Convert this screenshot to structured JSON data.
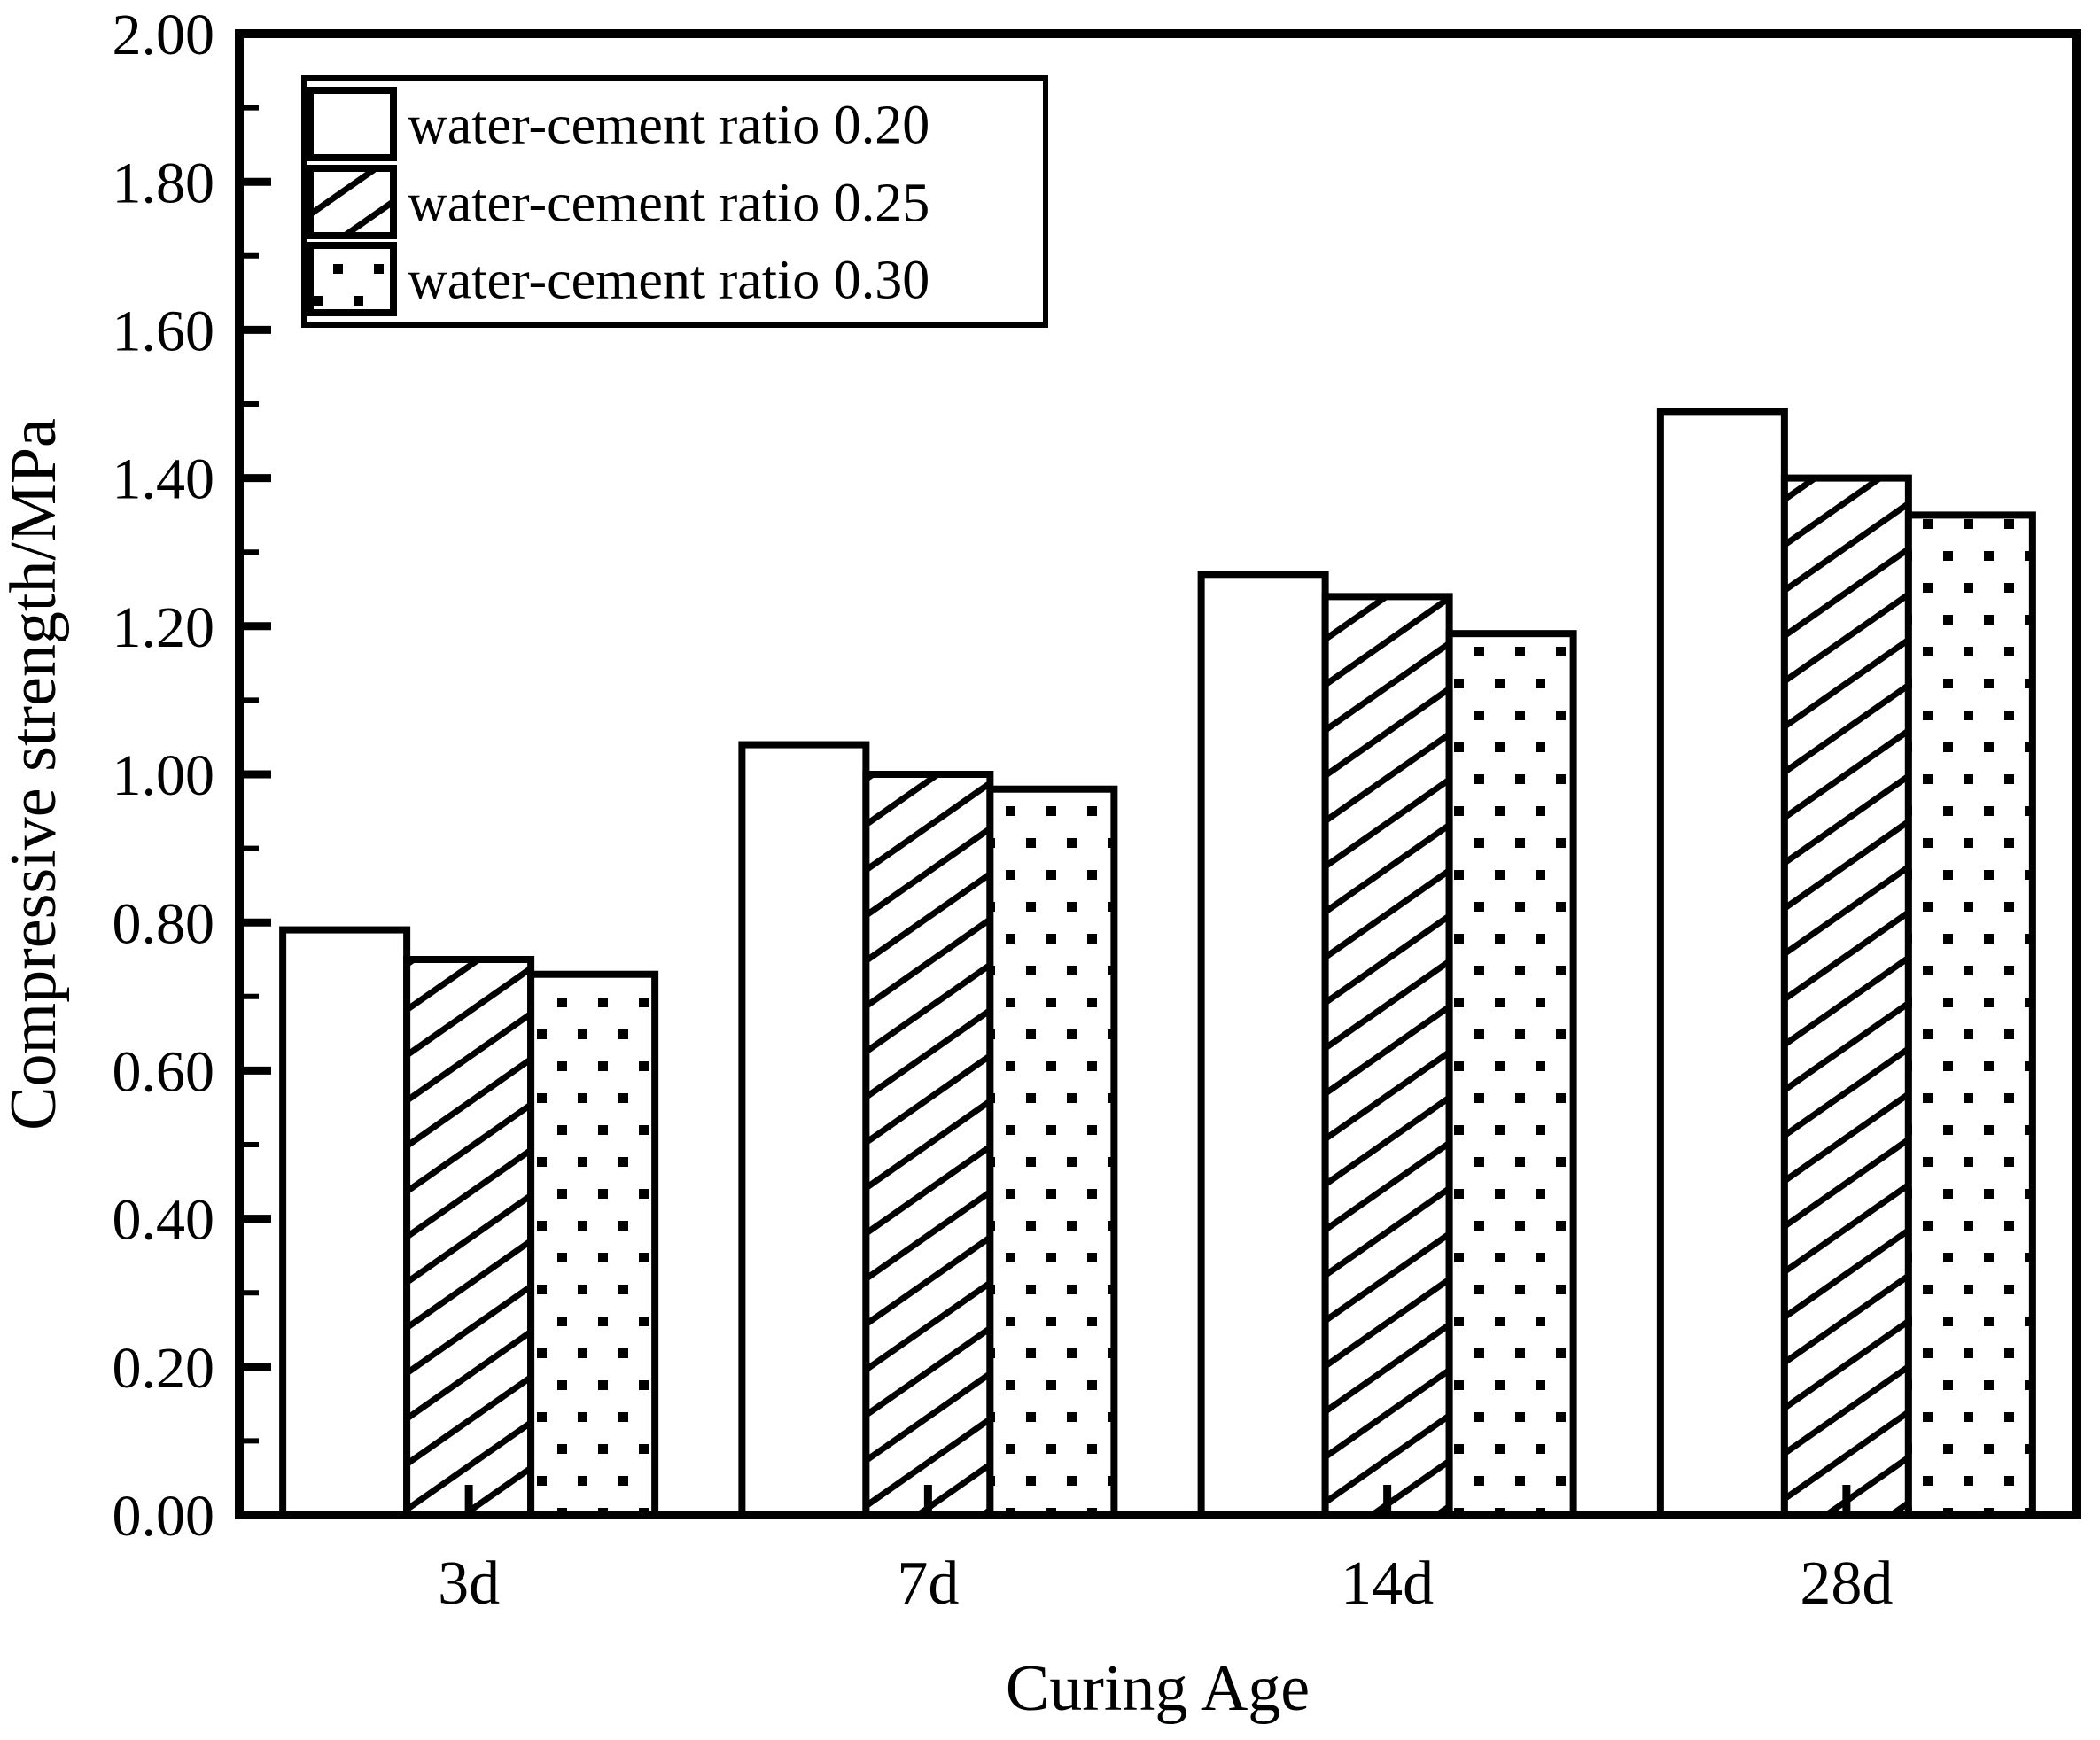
{
  "chart_data": {
    "type": "bar",
    "title": "",
    "xlabel": "Curing Age",
    "ylabel": "Compressive strength/MPa",
    "categories": [
      "3d",
      "7d",
      "14d",
      "28d"
    ],
    "series": [
      {
        "name": "water-cement ratio 0.20",
        "pattern": "plain",
        "values": [
          0.79,
          1.04,
          1.27,
          1.49
        ]
      },
      {
        "name": "water-cement ratio 0.25",
        "pattern": "diagonal-hatch",
        "values": [
          0.75,
          1.0,
          1.24,
          1.4
        ]
      },
      {
        "name": "water-cement ratio 0.30",
        "pattern": "dots",
        "values": [
          0.73,
          0.98,
          1.19,
          1.35
        ]
      }
    ],
    "ylim": [
      0.0,
      2.0
    ],
    "y_major_step": 0.2,
    "y_minor_step": 0.1,
    "y_tick_labels": [
      "0.00",
      "0.20",
      "0.40",
      "0.60",
      "0.80",
      "1.00",
      "1.20",
      "1.40",
      "1.60",
      "1.80",
      "2.00"
    ],
    "legend_position": "top-left",
    "grid": false,
    "colors": {
      "foreground": "#000000",
      "background": "#ffffff"
    }
  }
}
